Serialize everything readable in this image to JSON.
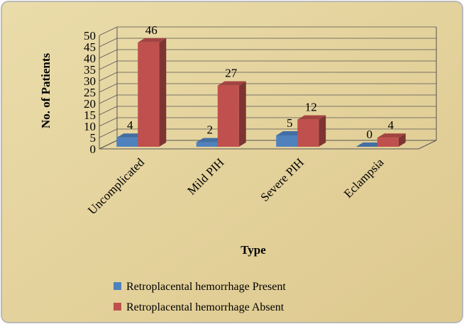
{
  "chart_data": {
    "type": "bar3d",
    "categories": [
      "Uncomplicated",
      "Mild PIH",
      "Severe PIH",
      "Eclampsia"
    ],
    "series": [
      {
        "name": "Retroplacental hemorrhage  Present",
        "color": "#4f81bd",
        "values": [
          4,
          2,
          5,
          0
        ]
      },
      {
        "name": "Retroplacental hemorrhage  Absent",
        "color": "#c0504d",
        "values": [
          46,
          27,
          12,
          4
        ]
      }
    ],
    "xlabel": "Type",
    "ylabel": "No. of Patients",
    "ylim": [
      0,
      50
    ],
    "yticks": [
      0,
      5,
      10,
      15,
      20,
      25,
      30,
      35,
      40,
      45,
      50
    ],
    "grid": true,
    "legend": "bottom"
  }
}
